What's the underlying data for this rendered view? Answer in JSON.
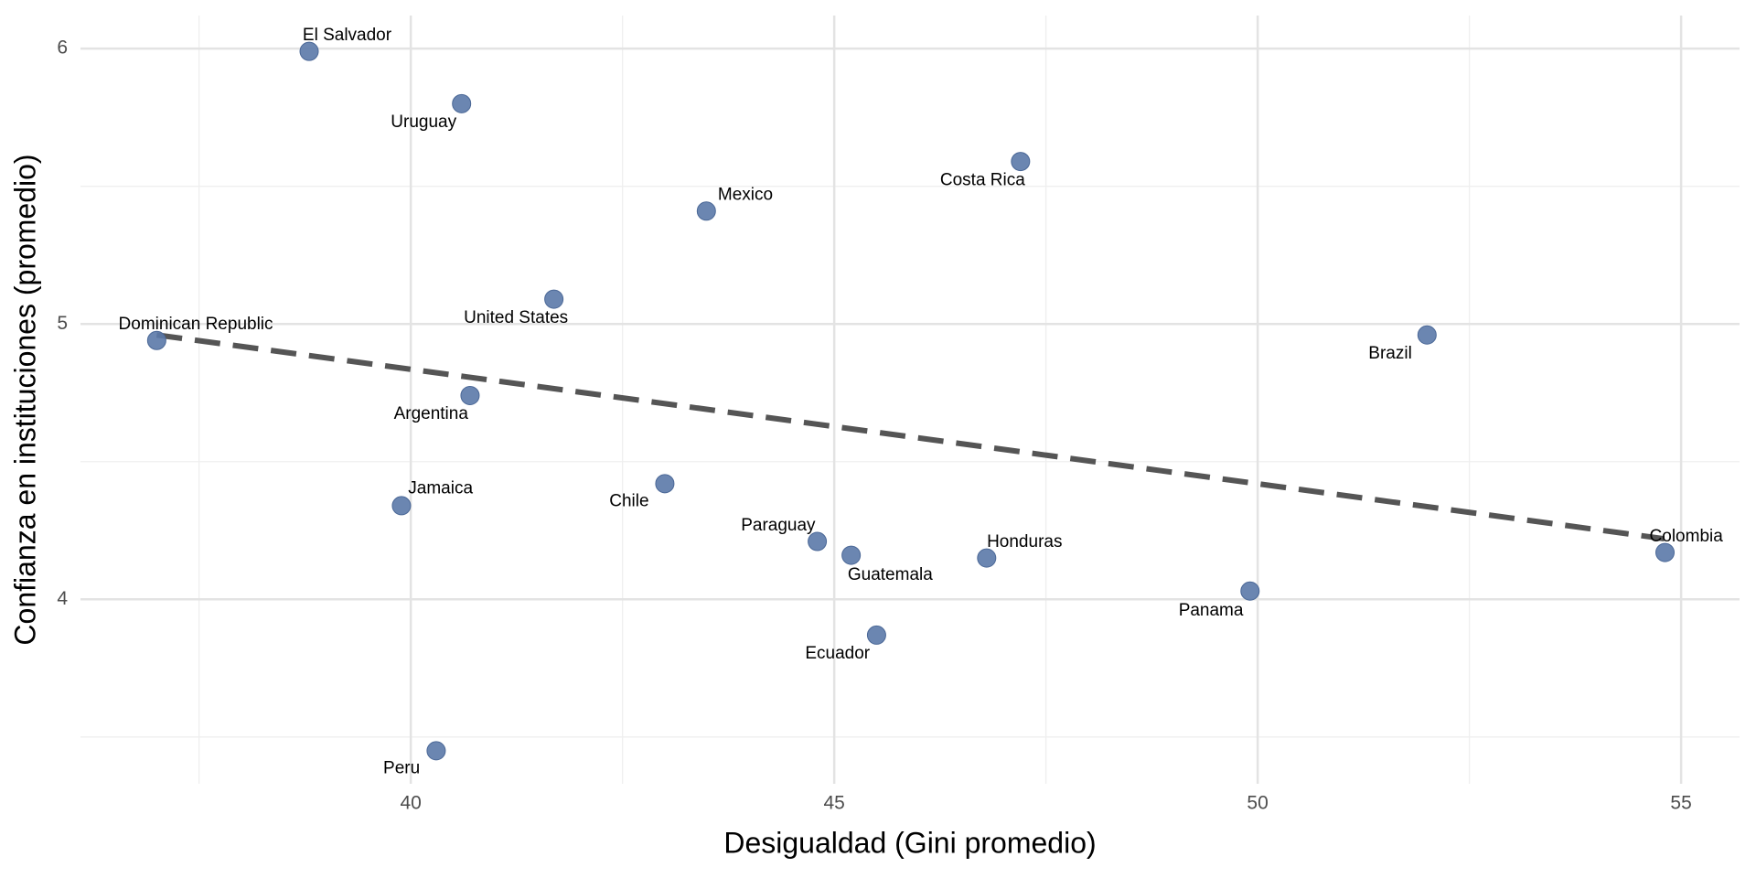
{
  "chart_data": {
    "type": "scatter",
    "x_label": "Desigualdad (Gini promedio)",
    "y_label": "Confianza en instituciones (promedio)",
    "labels": [
      "El Salvador",
      "Uruguay",
      "Costa Rica",
      "Mexico",
      "United States",
      "Dominican Republic",
      "Brazil",
      "Argentina",
      "Jamaica",
      "Chile",
      "Paraguay",
      "Guatemala",
      "Honduras",
      "Colombia",
      "Panama",
      "Ecuador",
      "Peru"
    ],
    "x": [
      38.8,
      40.6,
      47.2,
      43.49,
      41.69,
      37.0,
      52.0,
      40.7,
      39.89,
      43.0,
      44.8,
      45.2,
      46.8,
      54.81,
      49.91,
      45.5,
      40.3
    ],
    "y": [
      5.99,
      5.8,
      5.59,
      5.41,
      5.09,
      4.94,
      4.96,
      4.74,
      4.34,
      4.42,
      4.21,
      4.16,
      4.15,
      4.17,
      4.03,
      3.87,
      3.45
    ],
    "color": "#5b79a8",
    "trend_line": {
      "x": [
        37.0,
        54.8
      ],
      "y": [
        4.96,
        4.22
      ],
      "color": "#555555"
    },
    "xlim": [
      36.1,
      55.69
    ],
    "ylim": [
      3.33,
      6.12
    ],
    "xticks": [
      40,
      45,
      50,
      55
    ],
    "yticks": [
      4,
      5,
      6
    ],
    "grid": true
  }
}
